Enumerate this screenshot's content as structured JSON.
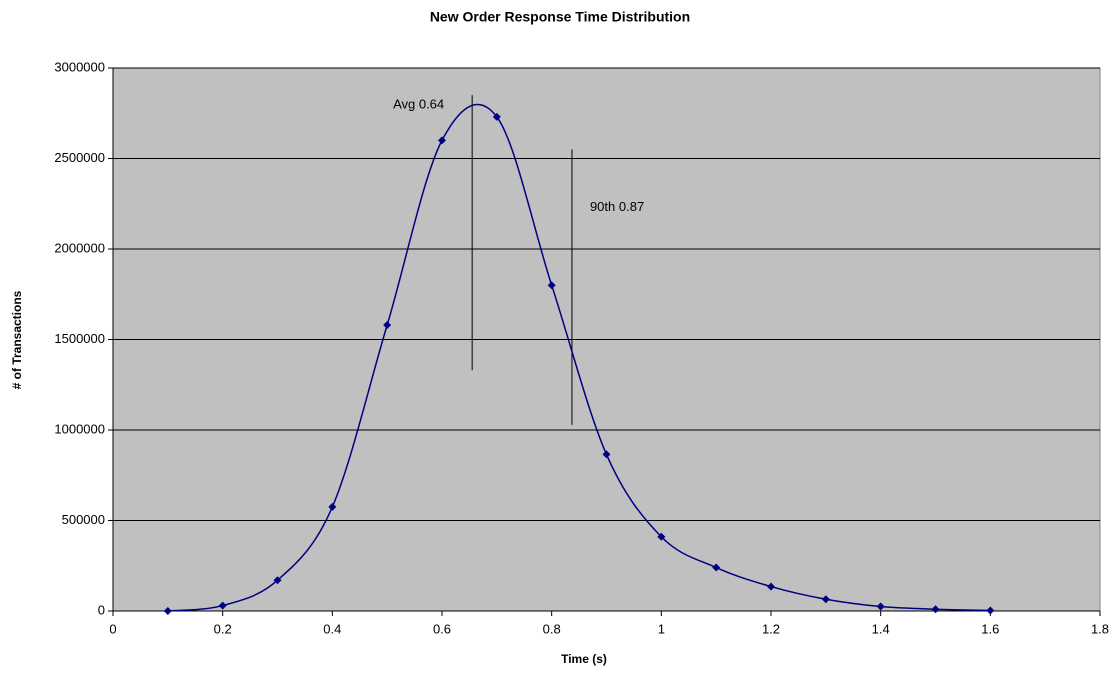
{
  "chart_data": {
    "type": "line",
    "title": "New Order Response Time Distribution",
    "x_label": "Time (s)",
    "y_label": "# of Transactions",
    "x": [
      0.1,
      0.2,
      0.3,
      0.4,
      0.5,
      0.6,
      0.7,
      0.8,
      0.9,
      1.0,
      1.1,
      1.2,
      1.3,
      1.4,
      1.5,
      1.6
    ],
    "series": [
      {
        "name": "Transactions",
        "color": "#000080",
        "values": [
          0,
          30000,
          170000,
          575000,
          1580000,
          2600000,
          2730000,
          1800000,
          865000,
          410000,
          240000,
          135000,
          65000,
          25000,
          10000,
          3000
        ]
      }
    ],
    "xlim": [
      0,
      1.8
    ],
    "xticks": [
      0,
      0.2,
      0.4,
      0.6,
      0.8,
      1,
      1.2,
      1.4,
      1.6,
      1.8
    ],
    "ylim": [
      0,
      3000000
    ],
    "yticks": [
      0,
      500000,
      1000000,
      1500000,
      2000000,
      2500000,
      3000000
    ],
    "grid": true,
    "smooth": true,
    "annotations": [
      {
        "text": "Avg 0.64",
        "x": 0.655,
        "y": [
          1330000,
          2850000
        ]
      },
      {
        "text": "90th 0.87",
        "x": 0.837,
        "y": [
          1028000,
          2550000
        ]
      }
    ]
  }
}
